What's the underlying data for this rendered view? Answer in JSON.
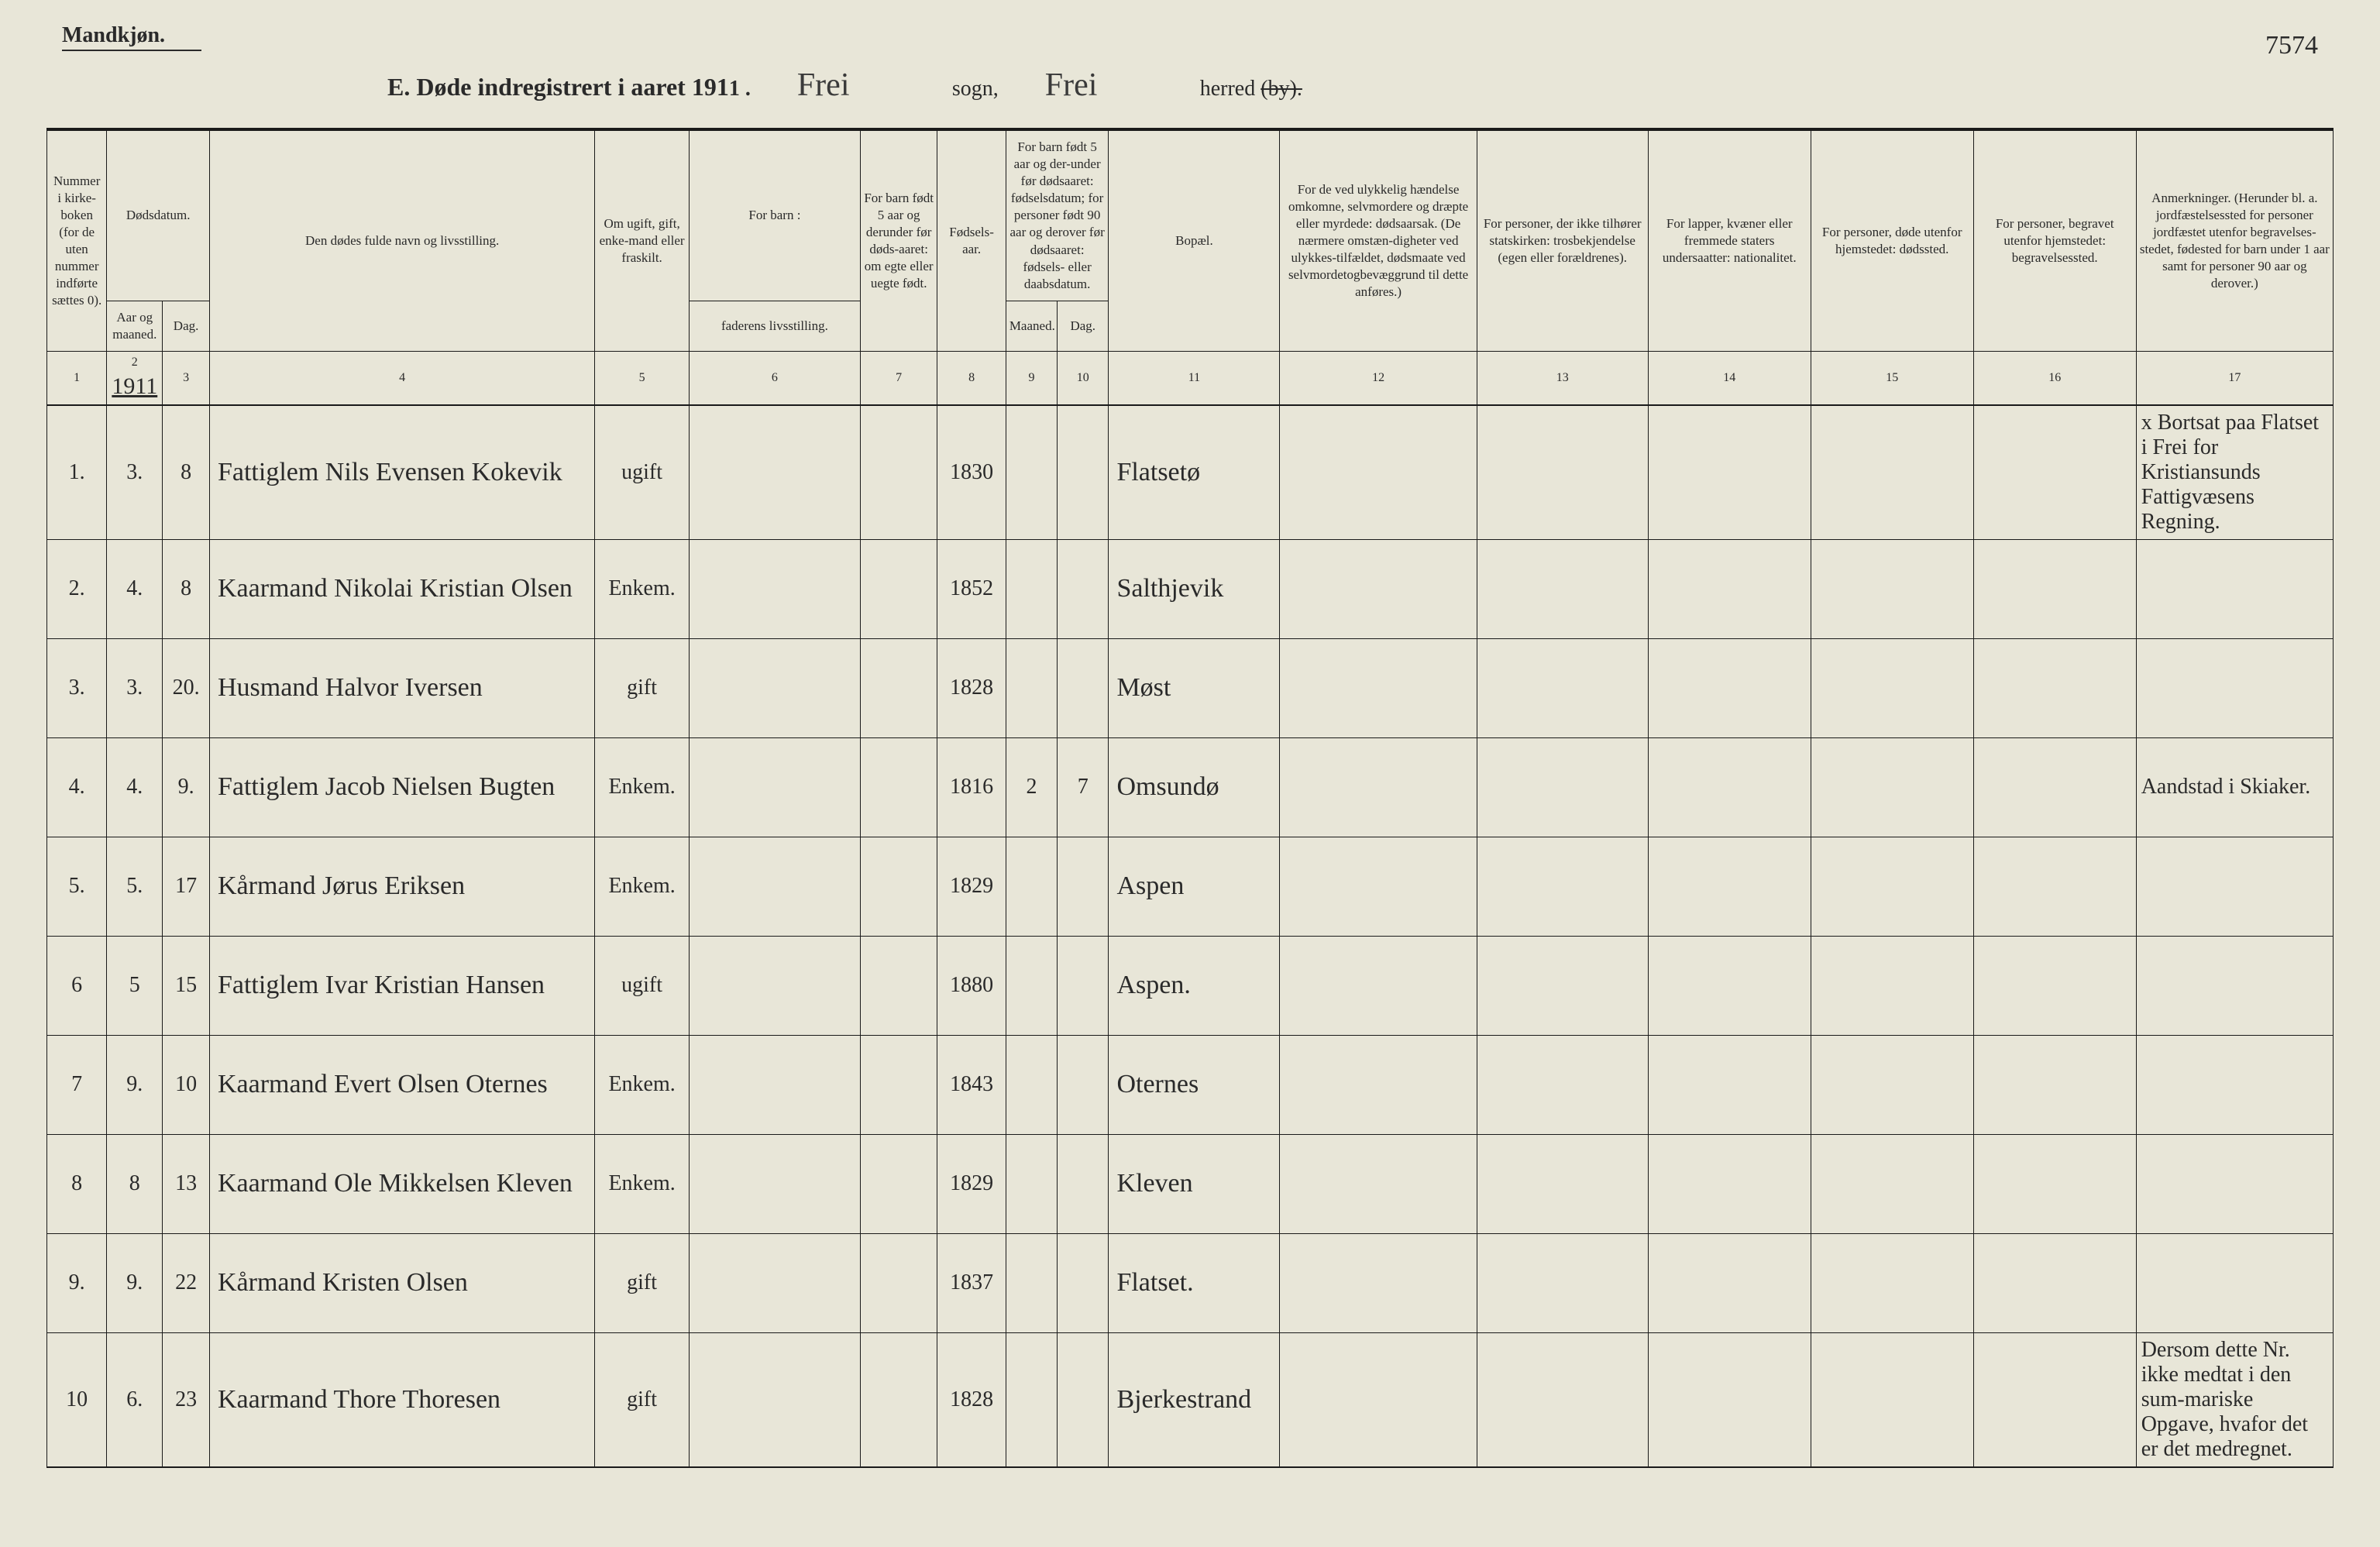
{
  "header": {
    "gender": "Mandkjøn.",
    "page_number": "7574",
    "title_prefix": "E.  Døde indregistrert i aaret 191",
    "title_year_suffix": "1 .",
    "sogn_value": "Frei",
    "sogn_label": "sogn,",
    "herred_value": "Frei",
    "herred_label": "herred",
    "herred_strike": "(by)."
  },
  "columns": {
    "c1": "Nummer i kirke-boken (for de uten nummer indførte sættes 0).",
    "c2_3_top": "Dødsdatum.",
    "c2": "Aar og maaned.",
    "c3": "Dag.",
    "c4": "Den dødes fulde navn og livsstilling.",
    "c5": "Om ugift, gift, enke-mand eller fraskilt.",
    "c6_top": "For barn :",
    "c6": "faderens livsstilling.",
    "c7": "For barn født 5 aar og derunder før døds-aaret: om egte eller uegte født.",
    "c8": "Fødsels-aar.",
    "c9_10_top": "For barn født 5 aar og der-under før dødsaaret: fødselsdatum; for personer født 90 aar og derover før dødsaaret: fødsels- eller daabsdatum.",
    "c9": "Maaned.",
    "c10": "Dag.",
    "c11": "Bopæl.",
    "c12": "For de ved ulykkelig hændelse omkomne, selvmordere og dræpte eller myrdede: dødsaarsak. (De nærmere omstæn-digheter ved ulykkes-tilfældet, dødsmaate ved selvmordetogbevæggrund til dette anføres.)",
    "c13": "For personer, der ikke tilhører statskirken: trosbekjendelse (egen eller forældrenes).",
    "c14": "For lapper, kvæner eller fremmede staters undersaatter: nationalitet.",
    "c15": "For personer, døde utenfor hjemstedet: dødssted.",
    "c16": "For personer, begravet utenfor hjemstedet: begravelsessted.",
    "c17": "Anmerkninger. (Herunder bl. a. jordfæstelsessted for personer jordfæstet utenfor begravelses-stedet, fødested for barn under 1 aar samt for personer 90 aar og derover.)"
  },
  "colnums": [
    "1",
    "2",
    "3",
    "4",
    "5",
    "6",
    "7",
    "8",
    "9",
    "10",
    "11",
    "12",
    "13",
    "14",
    "15",
    "16",
    "17"
  ],
  "year_in_col2": "1911",
  "rows": [
    {
      "n": "1.",
      "m": "3.",
      "d": "8",
      "name": "Fattiglem Nils Evensen Kokevik",
      "stat": "ugift",
      "f": "",
      "e": "",
      "y": "1830",
      "mm": "",
      "dd": "",
      "bop": "Flatsetø",
      "c12": "",
      "c13": "",
      "c14": "",
      "c15": "",
      "c16": "",
      "ann": "x Bortsat paa Flatset i Frei for Kristiansunds Fattigvæsens Regning."
    },
    {
      "n": "2.",
      "m": "4.",
      "d": "8",
      "name": "Kaarmand Nikolai Kristian Olsen",
      "stat": "Enkem.",
      "f": "",
      "e": "",
      "y": "1852",
      "mm": "",
      "dd": "",
      "bop": "Salthjevik",
      "c12": "",
      "c13": "",
      "c14": "",
      "c15": "",
      "c16": "",
      "ann": ""
    },
    {
      "n": "3.",
      "m": "3.",
      "d": "20.",
      "name": "Husmand Halvor Iversen",
      "stat": "gift",
      "f": "",
      "e": "",
      "y": "1828",
      "mm": "",
      "dd": "",
      "bop": "Møst",
      "c12": "",
      "c13": "",
      "c14": "",
      "c15": "",
      "c16": "",
      "ann": ""
    },
    {
      "n": "4.",
      "m": "4.",
      "d": "9.",
      "name": "Fattiglem Jacob Nielsen Bugten",
      "stat": "Enkem.",
      "f": "",
      "e": "",
      "y": "1816",
      "mm": "2",
      "dd": "7",
      "bop": "Omsundø",
      "c12": "",
      "c13": "",
      "c14": "",
      "c15": "",
      "c16": "",
      "ann": "Aandstad i Skiaker."
    },
    {
      "n": "5.",
      "m": "5.",
      "d": "17",
      "name": "Kårmand Jørus Eriksen",
      "stat": "Enkem.",
      "f": "",
      "e": "",
      "y": "1829",
      "mm": "",
      "dd": "",
      "bop": "Aspen",
      "c12": "",
      "c13": "",
      "c14": "",
      "c15": "",
      "c16": "",
      "ann": ""
    },
    {
      "n": "6",
      "m": "5",
      "d": "15",
      "name": "Fattiglem Ivar Kristian Hansen",
      "stat": "ugift",
      "f": "",
      "e": "",
      "y": "1880",
      "mm": "",
      "dd": "",
      "bop": "Aspen.",
      "c12": "",
      "c13": "",
      "c14": "",
      "c15": "",
      "c16": "",
      "ann": ""
    },
    {
      "n": "7",
      "m": "9.",
      "d": "10",
      "name": "Kaarmand Evert Olsen Oternes",
      "stat": "Enkem.",
      "f": "",
      "e": "",
      "y": "1843",
      "mm": "",
      "dd": "",
      "bop": "Oternes",
      "c12": "",
      "c13": "",
      "c14": "",
      "c15": "",
      "c16": "",
      "ann": ""
    },
    {
      "n": "8",
      "m": "8",
      "d": "13",
      "name": "Kaarmand Ole Mikkelsen Kleven",
      "stat": "Enkem.",
      "f": "",
      "e": "",
      "y": "1829",
      "mm": "",
      "dd": "",
      "bop": "Kleven",
      "c12": "",
      "c13": "",
      "c14": "",
      "c15": "",
      "c16": "",
      "ann": ""
    },
    {
      "n": "9.",
      "m": "9.",
      "d": "22",
      "name": "Kårmand Kristen Olsen",
      "stat": "gift",
      "f": "",
      "e": "",
      "y": "1837",
      "mm": "",
      "dd": "",
      "bop": "Flatset.",
      "c12": "",
      "c13": "",
      "c14": "",
      "c15": "",
      "c16": "",
      "ann": ""
    },
    {
      "n": "10",
      "m": "6.",
      "d": "23",
      "name": "Kaarmand Thore Thoresen",
      "stat": "gift",
      "f": "",
      "e": "",
      "y": "1828",
      "mm": "",
      "dd": "",
      "bop": "Bjerkestrand",
      "c12": "",
      "c13": "",
      "c14": "",
      "c15": "",
      "c16": "",
      "ann": "Dersom dette Nr. ikke medtat i den sum-mariske Opgave, hvafor det er det medregnet."
    }
  ]
}
